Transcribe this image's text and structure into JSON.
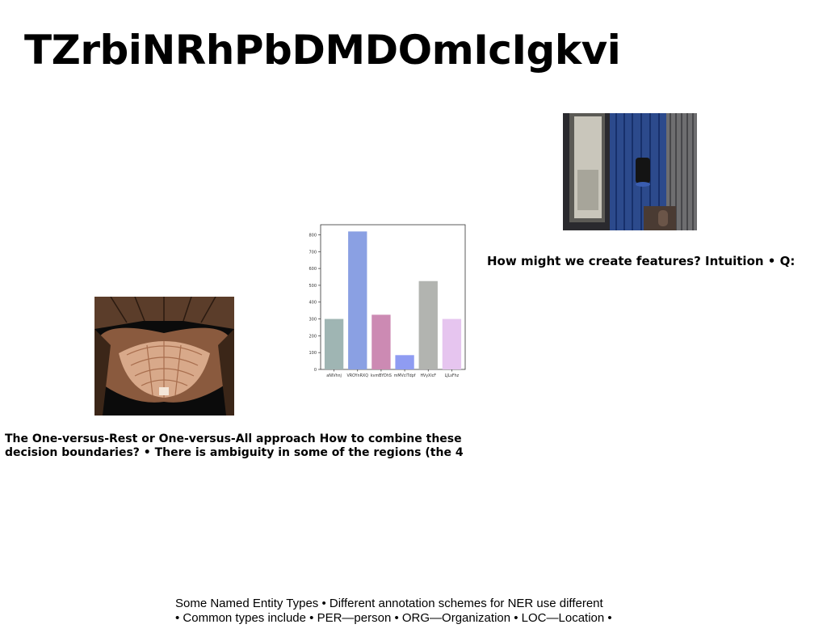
{
  "title": "TZrbiNRhPbDMDOmIcIgkvi",
  "images": {
    "room": "interior-room-photo",
    "arch": "architecture-dome-photo"
  },
  "caption_right": "How might we create features? Intuition • Q:",
  "caption_left": {
    "line1": "The One-versus-Rest or One-versus-All approach How to combine these",
    "line2": "decision boundaries? • There is ambiguity in some of the regions (the 4"
  },
  "caption_bottom": {
    "line1": "Some Named Entity Types • Different annotation schemes for NER use different",
    "line2": "• Common types include • PER—person • ORG—Organization • LOC—Location •"
  },
  "chart_data": {
    "type": "bar",
    "categories": [
      "aNIVhnj",
      "VROYnRXQ",
      "kvmBYDhS",
      "mMVclTdpf",
      "HVyXlcF",
      "LJLsFhz"
    ],
    "values": [
      300,
      820,
      325,
      85,
      525,
      300
    ],
    "colors": [
      "#9fb5b3",
      "#8aa0e3",
      "#cc8ab3",
      "#8f9cf2",
      "#b2b4b0",
      "#e6c5ef"
    ],
    "ylim": [
      0,
      860
    ],
    "yticks": [
      0,
      100,
      200,
      300,
      400,
      500,
      600,
      700,
      800
    ],
    "grid": false
  }
}
